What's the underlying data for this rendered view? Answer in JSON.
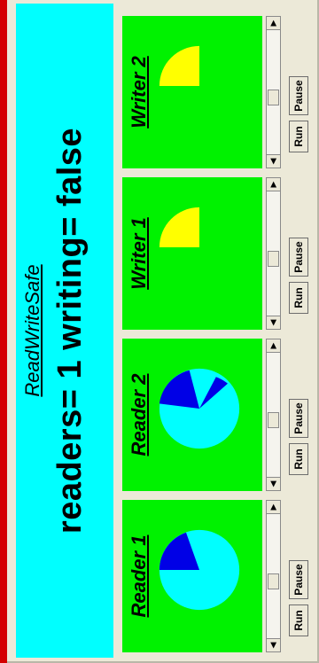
{
  "applet": {
    "title": "ReadWriteSafe",
    "status": "readers= 1  writing= false"
  },
  "colors": {
    "header_bg": "#00ffff",
    "panel_bg": "#00f200",
    "reader_light": "#00ffff",
    "reader_dark": "#0000e6",
    "writer": "#ffff00"
  },
  "panels": [
    {
      "label": "Reader 1",
      "run_label": "Run",
      "pause_label": "Pause",
      "kind": "reader"
    },
    {
      "label": "Reader 2",
      "run_label": "Run",
      "pause_label": "Pause",
      "kind": "reader"
    },
    {
      "label": "Writer 1",
      "run_label": "Run",
      "pause_label": "Pause",
      "kind": "writer"
    },
    {
      "label": "Writer 2",
      "run_label": "Run",
      "pause_label": "Pause",
      "kind": "writer"
    }
  ],
  "icons": {
    "scroll_left": "arrow-left-icon",
    "scroll_right": "arrow-right-icon"
  }
}
